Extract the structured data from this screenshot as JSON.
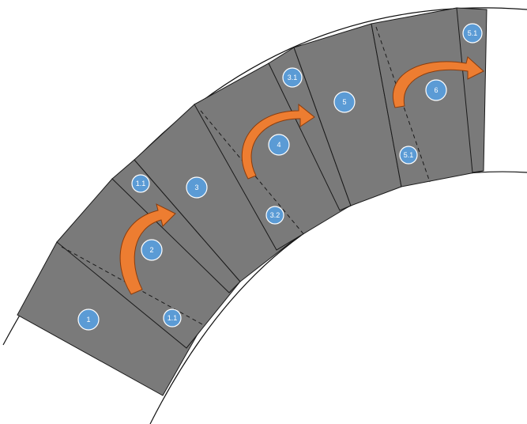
{
  "colors": {
    "panel_fill": "#7a7a7a",
    "badge_fill": "#5b9bd5",
    "arrow_fill": "#ed7d31",
    "background": "#ffffff"
  },
  "badges": {
    "p1": "1",
    "p1_1a": "1.1",
    "p1_1b": "1.1",
    "p2": "2",
    "p3": "3",
    "p3_1": "3.1",
    "p3_2": "3.2",
    "p4": "4",
    "p5": "5",
    "p5_1a": "5.1",
    "p5_1b": "5.1",
    "p6": "6"
  },
  "arrows": [
    "fold-arrow",
    "fold-arrow",
    "fold-arrow"
  ]
}
